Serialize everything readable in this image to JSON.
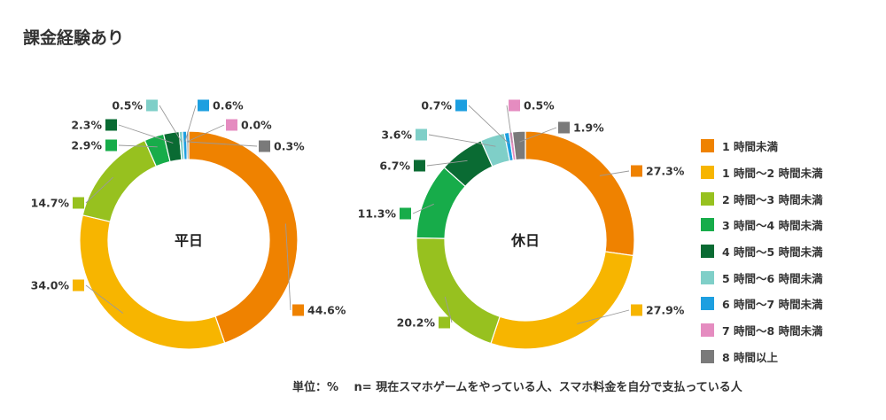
{
  "page_title": "課金経験あり",
  "footnote": "単位：%　 n= 現在スマホゲームをやっている人、スマホ料金を自分で支払っている人",
  "chart_data": [
    {
      "type": "pie",
      "center_label": "平日",
      "categories": [
        "1時間未満",
        "1時間〜2時間未満",
        "2時間〜3時間未満",
        "3時間〜4時間未満",
        "4時間〜5時間未満",
        "5時間〜6時間未満",
        "6時間〜7時間未満",
        "7時間〜8時間未満",
        "8時間以上"
      ],
      "values": [
        44.6,
        34.0,
        14.7,
        2.9,
        2.3,
        0.5,
        0.6,
        0.0,
        0.3
      ],
      "labels": [
        "44.6%",
        "34.0%",
        "14.7%",
        "2.9%",
        "2.3%",
        "0.5%",
        "0.6%",
        "0.0%",
        "0.3%"
      ]
    },
    {
      "type": "pie",
      "center_label": "休日",
      "categories": [
        "1時間未満",
        "1時間〜2時間未満",
        "2時間〜3時間未満",
        "3時間〜4時間未満",
        "4時間〜5時間未満",
        "5時間〜6時間未満",
        "6時間〜7時間未満",
        "7時間〜8時間未満",
        "8時間以上"
      ],
      "values": [
        27.3,
        27.9,
        20.2,
        11.3,
        6.7,
        3.6,
        0.7,
        0.5,
        1.9
      ],
      "labels": [
        "27.3%",
        "27.9%",
        "20.2%",
        "11.3%",
        "6.7%",
        "3.6%",
        "0.7%",
        "0.5%",
        "1.9%"
      ]
    }
  ],
  "legend": [
    {
      "label": "1 時間未満",
      "color": "#EF8200"
    },
    {
      "label": "1 時間〜2 時間未満",
      "color": "#F7B500"
    },
    {
      "label": "2 時間〜3 時間未満",
      "color": "#97C11F"
    },
    {
      "label": "3 時間〜4 時間未満",
      "color": "#17AC4A"
    },
    {
      "label": "4 時間〜5 時間未満",
      "color": "#0A6B33"
    },
    {
      "label": "5 時間〜6 時間未満",
      "color": "#7FCFC8"
    },
    {
      "label": "6 時間〜7 時間未満",
      "color": "#1D9FE0"
    },
    {
      "label": "7 時間〜8 時間未満",
      "color": "#E58CC0"
    },
    {
      "label": "8 時間以上",
      "color": "#7A7A7A"
    }
  ]
}
